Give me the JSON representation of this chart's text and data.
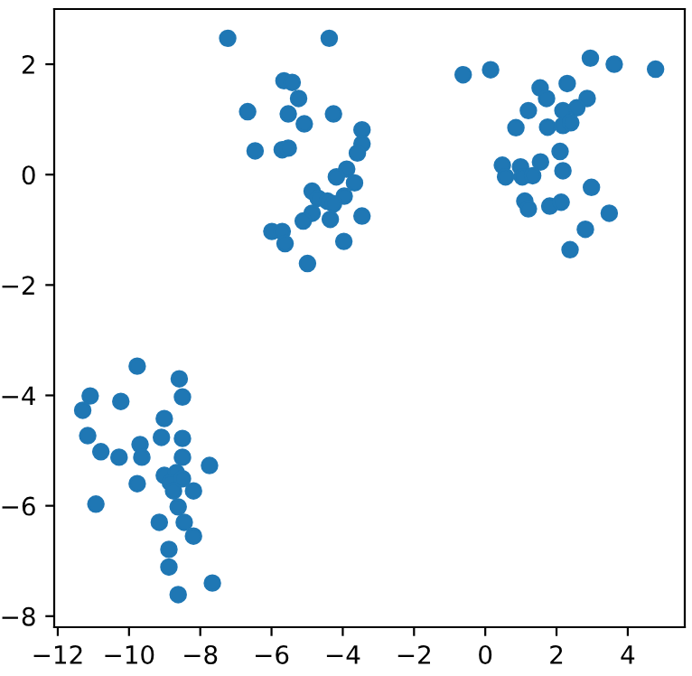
{
  "chart_data": {
    "type": "scatter",
    "marker": "circle",
    "xlim": [
      -12.1,
      5.6
    ],
    "ylim": [
      -8.2,
      3.0
    ],
    "xticks": [
      {
        "value": -12,
        "label": "−12"
      },
      {
        "value": -10,
        "label": "−10"
      },
      {
        "value": -8,
        "label": "−8"
      },
      {
        "value": -6,
        "label": "−6"
      },
      {
        "value": -4,
        "label": "−4"
      },
      {
        "value": -2,
        "label": "−2"
      },
      0,
      2,
      4
    ],
    "yticks": [
      {
        "value": -8,
        "label": "−8"
      },
      {
        "value": -6,
        "label": "−6"
      },
      {
        "value": -4,
        "label": "−4"
      },
      {
        "value": -2,
        "label": "−2"
      },
      0,
      2
    ],
    "series": [
      {
        "color": "#1f77b4",
        "x": [
          -9.77,
          -8.59,
          -8.5,
          -11.09,
          -11.3,
          -10.23,
          -9.01,
          -11.16,
          -9.09,
          -8.5,
          -10.79,
          -10.28,
          -9.69,
          -9.64,
          -8.5,
          -7.74,
          -9.01,
          -8.67,
          -8.84,
          -8.5,
          -9.77,
          -8.75,
          -8.19,
          -10.93,
          -8.62,
          -9.15,
          -8.45,
          -8.19,
          -8.88,
          -8.88,
          -7.66,
          -8.62,
          -7.23,
          -4.38,
          -5.65,
          -5.42,
          -5.24,
          -6.67,
          -5.53,
          -4.26,
          -5.08,
          -3.46,
          -6.46,
          -5.7,
          -5.53,
          -3.46,
          -3.59,
          -3.89,
          -4.18,
          -3.67,
          -4.86,
          -4.69,
          -3.96,
          -4.43,
          -4.26,
          -4.86,
          -5.11,
          -4.35,
          -3.46,
          -5.99,
          -5.7,
          -5.62,
          -3.97,
          -4.99,
          -0.62,
          0.15,
          2.95,
          3.62,
          4.78,
          1.54,
          2.3,
          1.72,
          2.86,
          1.21,
          2.18,
          2.57,
          0.86,
          1.75,
          2.18,
          2.4,
          2.1,
          1.55,
          2.18,
          0.48,
          0.99,
          0.57,
          1.04,
          1.33,
          2.98,
          1.11,
          1.21,
          1.81,
          2.13,
          3.48,
          2.81,
          2.38
        ],
        "values": [
          -3.47,
          -3.7,
          -4.03,
          -4.01,
          -4.27,
          -4.11,
          -4.42,
          -4.73,
          -4.76,
          -4.78,
          -5.02,
          -5.12,
          -4.89,
          -5.12,
          -5.12,
          -5.27,
          -5.45,
          -5.4,
          -5.58,
          -5.51,
          -5.6,
          -5.73,
          -5.73,
          -5.97,
          -6.02,
          -6.3,
          -6.3,
          -6.55,
          -6.79,
          -7.11,
          -7.4,
          -7.61,
          2.47,
          2.47,
          1.7,
          1.67,
          1.38,
          1.14,
          1.1,
          1.1,
          0.92,
          0.81,
          0.43,
          0.45,
          0.48,
          0.56,
          0.39,
          0.1,
          -0.04,
          -0.15,
          -0.3,
          -0.43,
          -0.39,
          -0.48,
          -0.53,
          -0.7,
          -0.84,
          -0.81,
          -0.75,
          -1.03,
          -1.03,
          -1.25,
          -1.21,
          -1.61,
          1.81,
          1.9,
          2.11,
          2.0,
          1.91,
          1.57,
          1.65,
          1.38,
          1.38,
          1.16,
          1.16,
          1.21,
          0.85,
          0.86,
          0.89,
          0.94,
          0.42,
          0.23,
          0.07,
          0.17,
          0.14,
          -0.04,
          -0.04,
          -0.02,
          -0.23,
          -0.48,
          -0.62,
          -0.57,
          -0.5,
          -0.7,
          -0.99,
          -1.36
        ]
      }
    ]
  }
}
